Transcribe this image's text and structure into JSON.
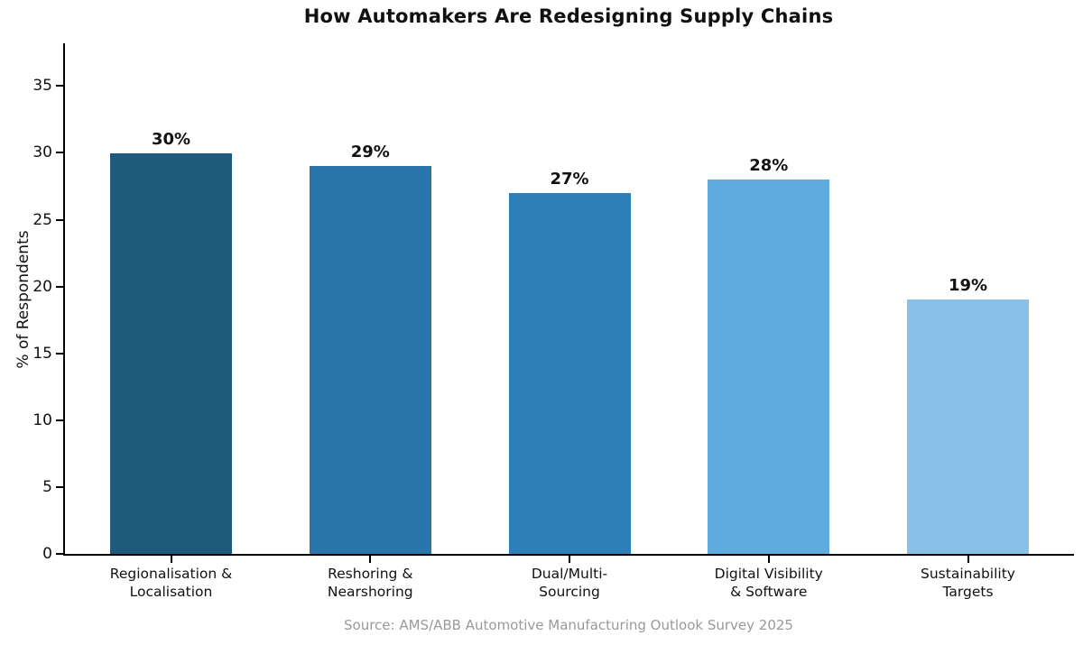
{
  "chart_data": {
    "type": "bar",
    "title": "How Automakers Are Redesigning Supply Chains",
    "xlabel": "",
    "ylabel": "% of Respondents",
    "ylim": [
      0,
      38.2
    ],
    "yticks": [
      0,
      5,
      10,
      15,
      20,
      25,
      30,
      35
    ],
    "grid": false,
    "legend": null,
    "categories": [
      "Regionalisation &\nLocalisation",
      "Reshoring &\nNearshoring",
      "Dual/Multi-\nSourcing",
      "Digital Visibility\n& Software",
      "Sustainability\nTargets"
    ],
    "values": [
      30,
      29,
      27,
      28,
      19
    ],
    "value_labels": [
      "30%",
      "29%",
      "27%",
      "28%",
      "19%"
    ],
    "bar_colors": [
      "#1d5a7c",
      "#2a75a9",
      "#2d80b7",
      "#5fabdd",
      "#88c0e8"
    ],
    "source": "Source: AMS/ABB Automotive Manufacturing Outlook Survey 2025"
  },
  "colors": {
    "background": "#ffffff",
    "axis": "#000000",
    "text": "#111111",
    "source_text": "#999999"
  }
}
